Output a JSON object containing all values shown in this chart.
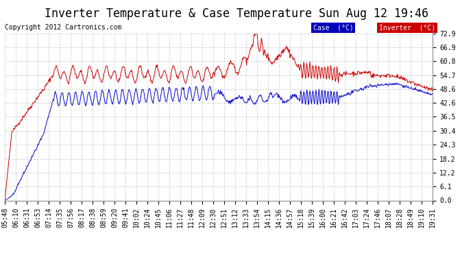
{
  "title": "Inverter Temperature & Case Temperature Sun Aug 12 19:46",
  "copyright": "Copyright 2012 Cartronics.com",
  "legend_case_label": "Case  (°C)",
  "legend_inverter_label": "Inverter  (°C)",
  "case_color": "#0000cc",
  "inverter_color": "#cc0000",
  "legend_case_bg": "#0000bb",
  "legend_inverter_bg": "#cc0000",
  "bg_color": "#ffffff",
  "plot_bg_color": "#ffffff",
  "grid_color": "#aaaaaa",
  "yticks": [
    0.0,
    6.1,
    12.2,
    18.2,
    24.3,
    30.4,
    36.5,
    42.6,
    48.6,
    54.7,
    60.8,
    66.9,
    72.9
  ],
  "xtick_labels": [
    "05:48",
    "06:10",
    "06:31",
    "06:53",
    "07:14",
    "07:35",
    "07:56",
    "08:17",
    "08:38",
    "08:59",
    "09:20",
    "09:41",
    "10:02",
    "10:24",
    "10:45",
    "11:06",
    "11:27",
    "11:48",
    "12:09",
    "12:30",
    "12:51",
    "13:12",
    "13:33",
    "13:54",
    "14:15",
    "14:36",
    "14:57",
    "15:18",
    "15:39",
    "16:00",
    "16:21",
    "16:42",
    "17:03",
    "17:24",
    "17:46",
    "18:07",
    "18:28",
    "18:49",
    "19:10",
    "19:31"
  ],
  "ymin": 0.0,
  "ymax": 72.9,
  "title_fontsize": 12,
  "tick_fontsize": 7,
  "copyright_fontsize": 7,
  "n_points": 840
}
